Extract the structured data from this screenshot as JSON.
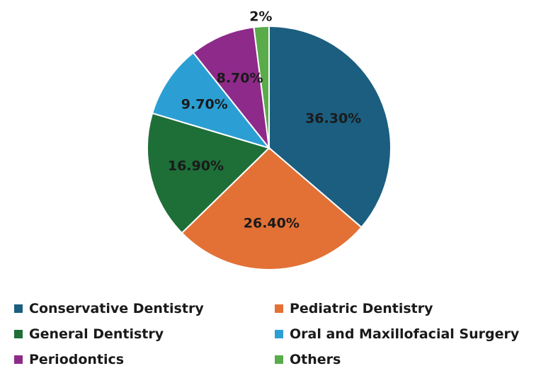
{
  "chart_data": {
    "type": "pie",
    "title": "",
    "legend_position": "bottom",
    "categories": [
      "Conservative Dentistry",
      "Pediatric Dentistry",
      "General Dentistry",
      "Oral and Maxillofacial Surgery",
      "Periodontics",
      "Others"
    ],
    "values": [
      36.3,
      26.4,
      16.9,
      9.7,
      8.7,
      2
    ],
    "labels": [
      "36.30%",
      "26.40%",
      "16.90%",
      "9.70%",
      "8.70%",
      "2%"
    ],
    "colors": [
      "#1b5e80",
      "#e37135",
      "#1e6e38",
      "#2b9fd4",
      "#8e2a8a",
      "#5aab4a"
    ]
  },
  "legend": {
    "items": [
      {
        "label": "Conservative Dentistry",
        "color": "#1b5e80"
      },
      {
        "label": "Pediatric Dentistry",
        "color": "#e37135"
      },
      {
        "label": "General Dentistry",
        "color": "#1e6e38"
      },
      {
        "label": "Oral and Maxillofacial Surgery",
        "color": "#2b9fd4"
      },
      {
        "label": "Periodontics",
        "color": "#8e2a8a"
      },
      {
        "label": "Others",
        "color": "#5aab4a"
      }
    ]
  }
}
